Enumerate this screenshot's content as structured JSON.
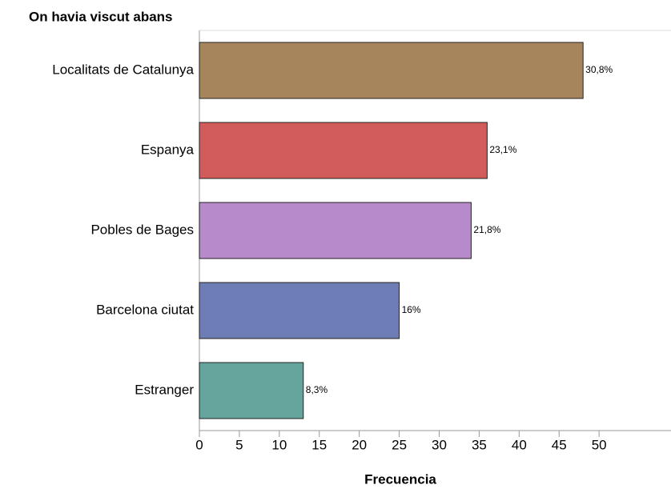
{
  "chart_data": {
    "type": "bar",
    "orientation": "horizontal",
    "title": "On havia viscut abans",
    "x_label": "Frecuencia",
    "categories": [
      "Localitats de Catalunya",
      "Espanya",
      "Pobles de Bages",
      "Barcelona ciutat",
      "Estranger"
    ],
    "values": [
      48,
      36,
      34,
      25,
      13
    ],
    "value_labels": [
      "30,8%",
      "23,1%",
      "21,8%",
      "16%",
      "8,3%"
    ],
    "colors": [
      "#a6845c",
      "#d05d5b",
      "#b78acb",
      "#6e7db5",
      "#66a59e"
    ],
    "xlim": [
      0,
      59
    ],
    "xticks": [
      0,
      5,
      10,
      15,
      20,
      25,
      30,
      35,
      40,
      45,
      50
    ]
  }
}
